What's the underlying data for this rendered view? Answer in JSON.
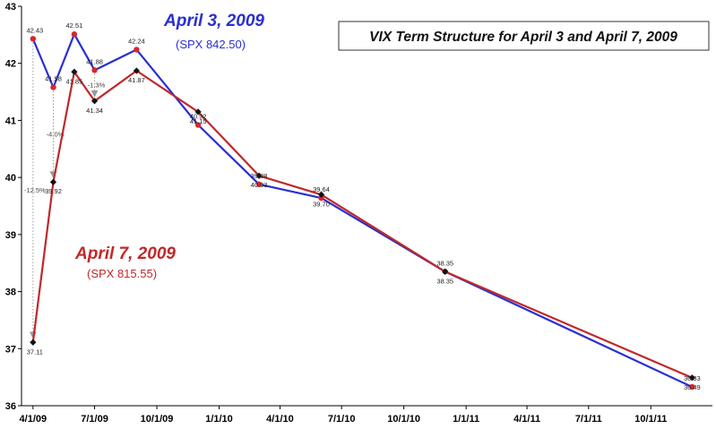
{
  "chart_data": {
    "type": "line",
    "title": "VIX Term Structure for April 3 and April 7, 2009",
    "xlabel": "",
    "ylabel": "",
    "ylim": [
      36,
      43
    ],
    "y_ticks": [
      36,
      37,
      38,
      39,
      40,
      41,
      42,
      43
    ],
    "x_ticks": [
      "4/1/09",
      "7/1/09",
      "10/1/09",
      "1/1/10",
      "4/1/10",
      "7/1/10",
      "10/1/10",
      "1/1/11",
      "4/1/11",
      "7/1/11",
      "10/1/11"
    ],
    "grid": false,
    "series": [
      {
        "name": "April 3, 2009",
        "subtitle": "(SPX 842.50)",
        "color": "#2a2fd0",
        "marker_color": "#d8262b",
        "x": [
          "2009-04-01",
          "2009-05-01",
          "2009-06-01",
          "2009-07-01",
          "2009-09-01",
          "2009-12-01",
          "2010-03-01",
          "2010-06-01",
          "2010-12-01",
          "2011-12-01"
        ],
        "values": [
          42.43,
          41.58,
          42.51,
          41.88,
          42.24,
          40.92,
          39.88,
          39.64,
          38.35,
          36.33
        ],
        "labels": [
          "42.43",
          "41.58",
          "42.51",
          "41.88",
          "42.24",
          "40.92",
          "39.88",
          "39.64",
          "38.35",
          "36.33"
        ]
      },
      {
        "name": "April 7, 2009",
        "subtitle": "(SPX 815.55)",
        "color": "#c0282a",
        "marker_color": "#111111",
        "x": [
          "2009-04-01",
          "2009-05-01",
          "2009-06-01",
          "2009-07-01",
          "2009-09-01",
          "2009-12-01",
          "2010-03-01",
          "2010-06-01",
          "2010-12-01",
          "2011-12-01"
        ],
        "values": [
          37.11,
          39.92,
          41.85,
          41.34,
          41.87,
          41.15,
          40.03,
          39.7,
          38.35,
          36.49
        ],
        "labels": [
          "37.11",
          "39.92",
          "41.85",
          "41.34",
          "41.87",
          "41.15",
          "40.03",
          "39.70",
          "38.35",
          "36.49"
        ]
      }
    ],
    "annotations": [
      {
        "text": "-12.5%",
        "from_series": 0,
        "to_series": 1,
        "index": 0
      },
      {
        "text": "-4.0%",
        "from_series": 0,
        "to_series": 1,
        "index": 1
      },
      {
        "text": "-1.3%",
        "from_series": 0,
        "to_series": 1,
        "index": 3
      }
    ]
  }
}
